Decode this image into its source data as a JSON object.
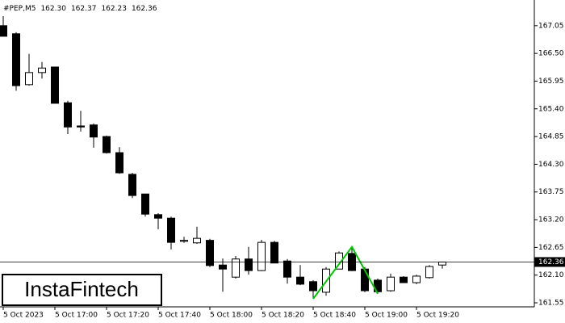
{
  "chart_data": {
    "type": "candlestick",
    "symbol": "#PEP,M5",
    "header_values": [
      162.3,
      162.37,
      162.23,
      162.36
    ],
    "header_value_labels": [
      "162.30",
      "162.37",
      "162.23",
      "162.36"
    ],
    "categories": [
      "5 Oct 2023",
      null,
      null,
      null,
      "5 Oct 17:00",
      null,
      null,
      null,
      "5 Oct 17:20",
      null,
      null,
      null,
      "5 Oct 17:40",
      null,
      null,
      null,
      "5 Oct 18:00",
      null,
      null,
      null,
      "5 Oct 18:20",
      null,
      null,
      null,
      "5 Oct 18:40",
      null,
      null,
      null,
      "5 Oct 19:00",
      null,
      null,
      null,
      "5 Oct 19:20",
      null,
      null
    ],
    "open": [
      167.05,
      166.89,
      165.88,
      166.12,
      166.23,
      165.52,
      165.06,
      165.08,
      164.85,
      164.53,
      164.1,
      163.71,
      163.3,
      163.23,
      162.77,
      162.74,
      162.79,
      162.3,
      162.06,
      162.42,
      162.19,
      162.75,
      162.38,
      162.06,
      161.97,
      161.76,
      162.22,
      162.53,
      162.22,
      162.0,
      161.79,
      162.06,
      161.95,
      162.05,
      162.3
    ],
    "high": [
      167.24,
      166.92,
      166.49,
      166.33,
      166.23,
      165.56,
      165.36,
      165.11,
      164.87,
      164.64,
      164.13,
      163.71,
      163.33,
      163.26,
      162.86,
      163.06,
      162.82,
      162.43,
      162.48,
      162.66,
      162.8,
      162.78,
      162.42,
      162.3,
      162.0,
      162.26,
      162.57,
      162.66,
      162.26,
      162.03,
      162.13,
      162.08,
      162.11,
      162.3,
      162.37
    ],
    "low": [
      166.84,
      165.76,
      165.86,
      166.0,
      165.51,
      164.9,
      164.95,
      164.63,
      164.51,
      164.11,
      163.63,
      163.26,
      163.01,
      162.61,
      162.74,
      162.72,
      162.26,
      161.77,
      162.03,
      162.11,
      162.18,
      162.34,
      161.93,
      161.9,
      161.63,
      161.69,
      162.22,
      162.18,
      161.76,
      161.73,
      161.77,
      161.95,
      161.92,
      162.03,
      162.23
    ],
    "close": [
      166.84,
      165.86,
      166.12,
      166.21,
      165.51,
      165.04,
      165.04,
      164.84,
      164.53,
      164.13,
      163.68,
      163.31,
      163.23,
      162.75,
      162.79,
      162.83,
      162.29,
      162.22,
      162.42,
      162.19,
      162.75,
      162.34,
      162.06,
      161.92,
      161.79,
      162.22,
      162.54,
      162.19,
      161.79,
      161.77,
      162.06,
      161.95,
      162.08,
      162.27,
      162.36
    ],
    "up_color": "#ffffff",
    "down_color": "#000000",
    "current_price": 162.36,
    "pattern_x": [
      24,
      27,
      29
    ],
    "pattern_y": [
      161.63,
      162.66,
      161.73
    ],
    "pattern_color": "#00c800",
    "ylim": [
      161.47,
      167.56
    ],
    "yticks": [
      167.05,
      {
        "value": 166.5,
        "label": "166.50"
      },
      165.95,
      {
        "value": 165.4,
        "label": "165.40"
      },
      164.85,
      {
        "value": 164.3,
        "label": "164.30"
      },
      163.75,
      {
        "value": 163.2,
        "label": "163.20"
      },
      162.65,
      {
        "value": 162.1,
        "label": "162.10"
      },
      161.55
    ],
    "logo": "InstaFintech"
  }
}
